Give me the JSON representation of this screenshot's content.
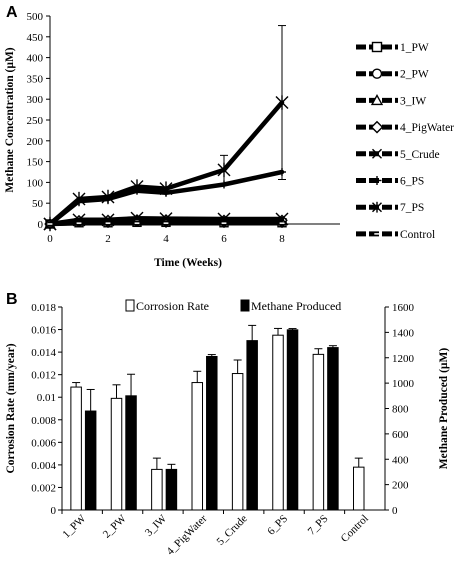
{
  "figure": {
    "panel_a_label": "A",
    "panel_b_label": "B"
  },
  "chart_data": [
    {
      "type": "line",
      "panel": "A",
      "xlabel": "Time (Weeks)",
      "ylabel": "Methane Concentration (µM)",
      "xlim": [
        0,
        10
      ],
      "ylim": [
        0,
        500
      ],
      "x_ticks": [
        0,
        2,
        4,
        6,
        8
      ],
      "y_ticks": [
        0,
        50,
        100,
        150,
        200,
        250,
        300,
        350,
        400,
        450,
        500
      ],
      "grid": false,
      "legend_position": "right",
      "series": [
        {
          "name": "1_PW",
          "marker": "square",
          "x": [
            0,
            1,
            2,
            3,
            4,
            6,
            8
          ],
          "y": [
            0,
            3,
            3,
            4,
            4,
            3,
            3
          ],
          "error": [
            0,
            0,
            0,
            0,
            0,
            0,
            0
          ]
        },
        {
          "name": "2_PW",
          "marker": "circle",
          "x": [
            0,
            1,
            2,
            3,
            4,
            6,
            8
          ],
          "y": [
            0,
            5,
            5,
            6,
            6,
            5,
            5
          ],
          "error": [
            0,
            0,
            0,
            0,
            0,
            0,
            0
          ]
        },
        {
          "name": "3_IW",
          "marker": "triangle",
          "x": [
            0,
            1,
            2,
            3,
            4,
            6,
            8
          ],
          "y": [
            0,
            6,
            7,
            8,
            8,
            8,
            8
          ],
          "error": [
            0,
            0,
            0,
            0,
            0,
            0,
            0
          ]
        },
        {
          "name": "4_PigWater",
          "marker": "diamond",
          "x": [
            0,
            1,
            2,
            3,
            4,
            6,
            8
          ],
          "y": [
            0,
            8,
            9,
            10,
            10,
            9,
            9
          ],
          "error": [
            0,
            0,
            0,
            0,
            0,
            0,
            0
          ]
        },
        {
          "name": "5_Crude",
          "marker": "x",
          "x": [
            0,
            1,
            2,
            3,
            4,
            6,
            8
          ],
          "y": [
            0,
            10,
            10,
            14,
            13,
            12,
            12
          ],
          "error": [
            0,
            0,
            0,
            0,
            0,
            0,
            0
          ]
        },
        {
          "name": "6_PS",
          "marker": "plus",
          "x": [
            0,
            1,
            2,
            3,
            4,
            6,
            8
          ],
          "y": [
            0,
            55,
            60,
            80,
            75,
            95,
            125
          ],
          "error": [
            0,
            0,
            0,
            0,
            0,
            0,
            0
          ]
        },
        {
          "name": "7_PS",
          "marker": "star",
          "x": [
            0,
            1,
            2,
            3,
            4,
            6,
            8
          ],
          "y": [
            0,
            60,
            65,
            90,
            85,
            130,
            292
          ],
          "error": [
            0,
            0,
            0,
            0,
            0,
            35,
            185
          ]
        },
        {
          "name": "Control",
          "marker": "dash",
          "x": [
            0,
            1,
            2,
            3,
            4,
            6,
            8
          ],
          "y": [
            0,
            2,
            2,
            2,
            2,
            2,
            2
          ],
          "error": [
            0,
            0,
            0,
            0,
            0,
            0,
            0
          ]
        }
      ]
    },
    {
      "type": "bar",
      "panel": "B",
      "categories": [
        "1_PW",
        "2_PW",
        "3_IW",
        "4_PigWater",
        "5_Crude",
        "6_PS",
        "7_PS",
        "Control"
      ],
      "ylabel": "Corrosion Rate (mm/year)",
      "y2label": "Methane Produced (µM)",
      "ylim": [
        0,
        0.018
      ],
      "y2lim": [
        0,
        1600
      ],
      "y_ticks": [
        "0",
        "0.002",
        "0.004",
        "0.006",
        "0.008",
        "0.01",
        "0.012",
        "0.014",
        "0.016",
        "0.018"
      ],
      "y2_ticks": [
        "0",
        "200",
        "400",
        "600",
        "800",
        "1000",
        "1200",
        "1400",
        "1600"
      ],
      "legend_position": "top",
      "series": [
        {
          "name": "Corrosion Rate",
          "axis": "left",
          "color": "#ffffff",
          "values": [
            0.0109,
            0.0099,
            0.0036,
            0.0113,
            0.0121,
            0.0155,
            0.0138,
            0.0038
          ],
          "error": [
            0.0004,
            0.0012,
            0.001,
            0.001,
            0.0012,
            0.0006,
            0.0005,
            0.0008
          ]
        },
        {
          "name": "Methane Produced",
          "axis": "right",
          "color": "#000000",
          "values": [
            780,
            900,
            320,
            1210,
            1335,
            1420,
            1280
          ],
          "positions": [
            0,
            1,
            2,
            3,
            4,
            5,
            6
          ],
          "error": [
            170,
            170,
            40,
            15,
            120,
            10,
            15
          ]
        }
      ]
    }
  ]
}
